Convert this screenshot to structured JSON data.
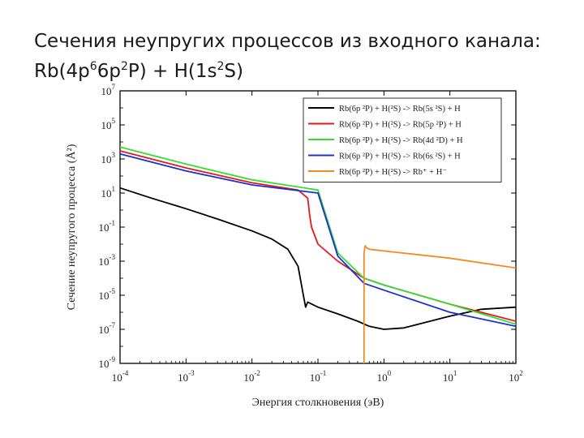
{
  "slide": {
    "title_line1": "Сечения неупругих процессов из входного канала:",
    "title_line2_parts": [
      {
        "t": "Rb(4p",
        "sup": false
      },
      {
        "t": "6",
        "sup": true
      },
      {
        "t": "6p",
        "sup": false
      },
      {
        "t": "2",
        "sup": true
      },
      {
        "t": "P) + H(1s",
        "sup": false
      },
      {
        "t": "2",
        "sup": true
      },
      {
        "t": "S)",
        "sup": false
      }
    ]
  },
  "chart_data": {
    "type": "line",
    "xscale": "log",
    "yscale": "log",
    "xlim": [
      0.0001,
      100
    ],
    "ylim": [
      1e-09,
      10000000.0
    ],
    "xlabel": "Энергия столкновения (эВ)",
    "ylabel": "Сечение неупругого процесса (Å²)",
    "x_ticks": [
      {
        "base": "10",
        "exp": "-4",
        "value": 0.0001
      },
      {
        "base": "10",
        "exp": "-3",
        "value": 0.001
      },
      {
        "base": "10",
        "exp": "-2",
        "value": 0.01
      },
      {
        "base": "10",
        "exp": "-1",
        "value": 0.1
      },
      {
        "base": "10",
        "exp": "0",
        "value": 1
      },
      {
        "base": "10",
        "exp": "1",
        "value": 10
      },
      {
        "base": "10",
        "exp": "2",
        "value": 100
      }
    ],
    "y_ticks": [
      {
        "base": "10",
        "exp": "7",
        "value": 10000000.0
      },
      {
        "base": "10",
        "exp": "5",
        "value": 100000.0
      },
      {
        "base": "10",
        "exp": "3",
        "value": 1000.0
      },
      {
        "base": "10",
        "exp": "1",
        "value": 10
      },
      {
        "base": "10",
        "exp": "-1",
        "value": 0.1
      },
      {
        "base": "10",
        "exp": "-3",
        "value": 0.001
      },
      {
        "base": "10",
        "exp": "-5",
        "value": 1e-05
      },
      {
        "base": "10",
        "exp": "-7",
        "value": 1e-07
      },
      {
        "base": "10",
        "exp": "-9",
        "value": 1e-09
      }
    ],
    "legend_position": "top-right",
    "series": [
      {
        "name": "Rb(6p ²P) + H(²S) -> Rb(5s ²S) + H",
        "color": "#000000",
        "x": [
          0.0001,
          0.0003,
          0.001,
          0.003,
          0.01,
          0.02,
          0.035,
          0.05,
          0.06,
          0.065,
          0.07,
          0.1,
          0.2,
          0.4,
          0.6,
          1,
          2,
          5,
          10,
          30,
          100
        ],
        "y": [
          20,
          5,
          1.2,
          0.3,
          0.06,
          0.02,
          0.005,
          0.0005,
          1e-05,
          2e-06,
          4e-06,
          2e-06,
          8e-07,
          3e-07,
          1.5e-07,
          1e-07,
          1.2e-07,
          3e-07,
          6e-07,
          1.5e-06,
          2e-06
        ]
      },
      {
        "name": "Rb(6p ²P) + H(²S) -> Rb(5p ²P) + H",
        "color": "#e31a1c",
        "x": [
          0.0001,
          0.001,
          0.01,
          0.05,
          0.07,
          0.075,
          0.08,
          0.1,
          0.2,
          0.5,
          1,
          10,
          100
        ],
        "y": [
          3000,
          300,
          40,
          15,
          5,
          0.5,
          0.1,
          0.01,
          0.001,
          0.0001,
          4e-05,
          3e-06,
          3e-07
        ]
      },
      {
        "name": "Rb(6p ²P) + H(²S) -> Rb(4d ²D) + H",
        "color": "#33dd33",
        "x": [
          0.0001,
          0.001,
          0.01,
          0.1,
          0.2,
          0.5,
          1,
          10,
          100
        ],
        "y": [
          5000,
          500,
          60,
          15,
          0.003,
          0.0001,
          4e-05,
          3e-06,
          2e-07
        ]
      },
      {
        "name": "Rb(6p ²P) + H(²S) -> Rb(6s ²S) + H",
        "color": "#1d2fd1",
        "x": [
          0.0001,
          0.001,
          0.01,
          0.1,
          0.2,
          0.5,
          1,
          10,
          100
        ],
        "y": [
          2000,
          200,
          30,
          10,
          0.002,
          5e-05,
          2e-05,
          1e-06,
          1.5e-07
        ]
      },
      {
        "name": "Rb(6p ²P) + H(²S) -> Rb⁺ + H⁻",
        "color": "#f08c20",
        "x": [
          0.5,
          0.5,
          0.52,
          0.55,
          0.6,
          1,
          10,
          100
        ],
        "y": [
          1e-09,
          0.003,
          0.008,
          0.006,
          0.005,
          0.004,
          0.0015,
          0.0004
        ]
      }
    ]
  }
}
